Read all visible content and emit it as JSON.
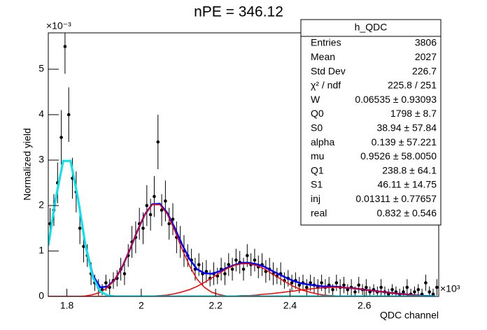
{
  "chart_data": {
    "type": "errorbar",
    "title": "nPE = 346.12",
    "x_label": "QDC channel",
    "y_label": "Normalized yield",
    "x_exponent": "×10³",
    "y_exponent": "×10⁻³",
    "xlim": [
      1.75,
      2.8
    ],
    "ylim": [
      0,
      5.8
    ],
    "xticks": [
      1.8,
      2,
      2.2,
      2.4,
      2.6
    ],
    "yticks": [
      0,
      1,
      2,
      3,
      4,
      5
    ],
    "points": {
      "color": "#000000",
      "x": [
        1.755,
        1.765,
        1.775,
        1.785,
        1.795,
        1.805,
        1.815,
        1.825,
        1.835,
        1.845,
        1.855,
        1.865,
        1.875,
        1.885,
        1.895,
        1.905,
        1.915,
        1.925,
        1.935,
        1.945,
        1.955,
        1.965,
        1.975,
        1.985,
        1.995,
        2.005,
        2.015,
        2.025,
        2.035,
        2.045,
        2.055,
        2.065,
        2.075,
        2.085,
        2.095,
        2.105,
        2.115,
        2.125,
        2.135,
        2.145,
        2.155,
        2.165,
        2.175,
        2.185,
        2.195,
        2.205,
        2.215,
        2.225,
        2.235,
        2.245,
        2.255,
        2.265,
        2.275,
        2.285,
        2.295,
        2.305,
        2.315,
        2.325,
        2.335,
        2.345,
        2.355,
        2.365,
        2.375,
        2.385,
        2.395,
        2.405,
        2.415,
        2.425,
        2.435,
        2.445,
        2.455,
        2.465,
        2.475,
        2.485,
        2.495,
        2.505,
        2.515,
        2.525,
        2.535,
        2.545,
        2.555,
        2.565,
        2.575,
        2.585,
        2.595,
        2.605,
        2.615,
        2.625,
        2.635,
        2.645,
        2.655,
        2.665,
        2.675,
        2.685,
        2.695,
        2.705,
        2.715,
        2.725,
        2.735,
        2.745,
        2.755,
        2.765,
        2.775,
        2.785,
        2.795
      ],
      "values": [
        1.6,
        1.9,
        2.5,
        3.5,
        5.5,
        4.0,
        2.6,
        2.3,
        1.5,
        1.1,
        0.9,
        0.5,
        0.3,
        0.2,
        0.15,
        0.3,
        0.2,
        0.35,
        0.4,
        0.6,
        0.5,
        0.9,
        1.2,
        1.3,
        1.6,
        1.5,
        2.0,
        1.8,
        2.2,
        3.4,
        1.9,
        2.1,
        1.6,
        1.7,
        1.3,
        1.2,
        1.0,
        0.9,
        0.8,
        0.6,
        0.7,
        0.5,
        0.55,
        0.4,
        0.5,
        0.45,
        0.6,
        0.5,
        0.7,
        0.6,
        0.8,
        0.75,
        0.6,
        0.9,
        0.7,
        0.8,
        0.65,
        0.7,
        0.55,
        0.6,
        0.5,
        0.45,
        0.5,
        0.35,
        0.4,
        0.3,
        0.35,
        0.25,
        0.3,
        0.2,
        0.3,
        0.25,
        0.2,
        0.3,
        0.2,
        0.25,
        0.15,
        0.3,
        0.2,
        0.25,
        0.15,
        0.2,
        0.1,
        0.25,
        0.15,
        0.2,
        0.1,
        0.15,
        0.1,
        0.2,
        0.1,
        0.05,
        0.15,
        0.1,
        0.05,
        0.1,
        0.2,
        0.05,
        0.1,
        0.15,
        0.05,
        0.3,
        0.1,
        0.05,
        0.2
      ],
      "errors": [
        0.35,
        0.35,
        0.45,
        0.6,
        0.6,
        0.6,
        0.45,
        0.45,
        0.35,
        0.35,
        0.25,
        0.25,
        0.18,
        0.18,
        0.12,
        0.18,
        0.18,
        0.18,
        0.18,
        0.25,
        0.25,
        0.25,
        0.35,
        0.35,
        0.35,
        0.35,
        0.45,
        0.35,
        0.45,
        0.6,
        0.35,
        0.45,
        0.35,
        0.35,
        0.35,
        0.35,
        0.35,
        0.25,
        0.25,
        0.25,
        0.25,
        0.25,
        0.25,
        0.18,
        0.25,
        0.18,
        0.25,
        0.25,
        0.25,
        0.25,
        0.25,
        0.25,
        0.25,
        0.25,
        0.25,
        0.25,
        0.25,
        0.25,
        0.25,
        0.25,
        0.25,
        0.18,
        0.25,
        0.18,
        0.18,
        0.18,
        0.18,
        0.18,
        0.18,
        0.18,
        0.18,
        0.18,
        0.18,
        0.18,
        0.18,
        0.18,
        0.12,
        0.18,
        0.18,
        0.18,
        0.12,
        0.18,
        0.12,
        0.18,
        0.12,
        0.18,
        0.12,
        0.12,
        0.12,
        0.18,
        0.12,
        0.12,
        0.12,
        0.12,
        0.12,
        0.12,
        0.18,
        0.12,
        0.12,
        0.12,
        0.12,
        0.18,
        0.12,
        0.12,
        0.18
      ]
    },
    "fit_x": [
      1.75,
      1.77,
      1.79,
      1.81,
      1.83,
      1.85,
      1.87,
      1.89,
      1.91,
      1.93,
      1.95,
      1.97,
      1.99,
      2.01,
      2.03,
      2.05,
      2.07,
      2.09,
      2.11,
      2.13,
      2.15,
      2.17,
      2.19,
      2.21,
      2.23,
      2.25,
      2.27,
      2.29,
      2.31,
      2.33,
      2.35,
      2.37,
      2.39,
      2.41,
      2.43,
      2.45,
      2.47,
      2.49,
      2.51,
      2.53,
      2.55,
      2.57,
      2.59,
      2.61,
      2.63,
      2.65,
      2.67,
      2.69,
      2.71,
      2.73,
      2.75,
      2.77,
      2.79
    ],
    "fits": [
      {
        "color": "#0000ff",
        "width": 2.5,
        "values": [
          1.12,
          2.15,
          2.98,
          2.98,
          2.15,
          1.13,
          0.46,
          0.2,
          0.22,
          0.38,
          0.67,
          1.04,
          1.45,
          1.81,
          2.03,
          2.04,
          1.84,
          1.51,
          1.14,
          0.82,
          0.6,
          0.51,
          0.5,
          0.55,
          0.63,
          0.69,
          0.74,
          0.74,
          0.71,
          0.66,
          0.57,
          0.49,
          0.41,
          0.34,
          0.29,
          0.26,
          0.24,
          0.22,
          0.22,
          0.21,
          0.19,
          0.18,
          0.16,
          0.14,
          0.12,
          0.1,
          0.08,
          0.06,
          0.05,
          0.03,
          0.02,
          0.01,
          0.01
        ]
      },
      {
        "color": "#ff0000",
        "width": 1.5,
        "values": [
          0,
          0,
          0,
          0,
          0,
          0.01,
          0.04,
          0.09,
          0.2,
          0.38,
          0.67,
          1.04,
          1.45,
          1.81,
          2.02,
          2.02,
          1.81,
          1.45,
          1.04,
          0.67,
          0.38,
          0.2,
          0.09,
          0.04,
          0.01,
          0,
          0,
          0,
          0,
          0,
          0,
          0,
          0,
          0,
          0,
          0,
          0,
          0,
          0,
          0,
          0,
          0,
          0,
          0,
          0,
          0,
          0,
          0,
          0,
          0,
          0,
          0,
          0
        ]
      },
      {
        "color": "#ff0000",
        "width": 1.5,
        "values": [
          0,
          0,
          0,
          0,
          0,
          0,
          0,
          0,
          0,
          0,
          0,
          0,
          0,
          0,
          0.01,
          0.02,
          0.03,
          0.06,
          0.1,
          0.15,
          0.22,
          0.31,
          0.41,
          0.51,
          0.61,
          0.68,
          0.72,
          0.72,
          0.68,
          0.61,
          0.51,
          0.41,
          0.31,
          0.22,
          0.15,
          0.1,
          0.06,
          0.03,
          0.02,
          0.01,
          0,
          0,
          0,
          0,
          0,
          0,
          0,
          0,
          0,
          0,
          0,
          0,
          0
        ]
      },
      {
        "color": "#ff0000",
        "width": 1.5,
        "values": [
          0,
          0,
          0,
          0,
          0,
          0,
          0,
          0,
          0,
          0,
          0,
          0,
          0,
          0,
          0,
          0,
          0,
          0,
          0,
          0,
          0,
          0,
          0,
          0,
          0.01,
          0.01,
          0.02,
          0.02,
          0.03,
          0.05,
          0.06,
          0.08,
          0.1,
          0.12,
          0.14,
          0.16,
          0.18,
          0.19,
          0.2,
          0.2,
          0.19,
          0.18,
          0.16,
          0.14,
          0.12,
          0.1,
          0.08,
          0.06,
          0.05,
          0.03,
          0.02,
          0.01,
          0.01
        ]
      },
      {
        "color": "#00e5ee",
        "width": 3,
        "values": [
          1.12,
          2.15,
          2.98,
          2.98,
          2.15,
          1.12,
          0.42,
          0.11,
          0.02,
          0,
          0,
          0,
          0,
          0,
          0,
          0,
          0,
          0,
          0,
          0,
          0,
          0,
          0,
          0,
          0,
          0,
          0,
          0,
          0,
          0,
          0,
          0,
          0,
          0,
          0,
          0,
          0,
          0,
          0,
          0,
          0,
          0,
          0,
          0,
          0,
          0,
          0,
          0,
          0,
          0,
          0,
          0,
          0
        ]
      }
    ],
    "stats_box": {
      "title": "h_QDC",
      "rows": [
        [
          "Entries",
          "3806"
        ],
        [
          "Mean",
          "2027"
        ],
        [
          "Std Dev",
          "226.7"
        ],
        [
          "χ² / ndf",
          "225.8 / 251"
        ],
        [
          "W",
          "0.06535 ± 0.93093"
        ],
        [
          "Q0",
          "1798 ± 8.7"
        ],
        [
          "S0",
          "38.94 ± 57.84"
        ],
        [
          "alpha",
          "0.139 ± 57.221"
        ],
        [
          "mu",
          "0.9526 ± 58.0050"
        ],
        [
          "Q1",
          "238.8 ± 64.1"
        ],
        [
          "S1",
          "46.11 ± 14.75"
        ],
        [
          "inj",
          "0.01311 ± 0.77657"
        ],
        [
          "real",
          "0.832 ± 0.546"
        ]
      ]
    }
  }
}
